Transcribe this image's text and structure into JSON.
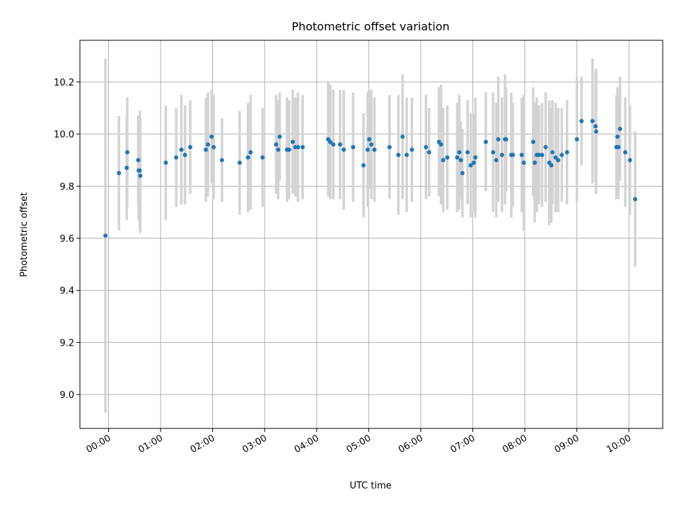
{
  "chart_data": {
    "type": "scatter",
    "title": "Photometric offset variation",
    "xlabel": "UTC time",
    "ylabel": "Photometric offset",
    "xlim": [
      -0.55,
      10.65
    ],
    "ylim": [
      8.87,
      10.36
    ],
    "grid": true,
    "x_ticks": [
      {
        "value": 0,
        "label": "00:00"
      },
      {
        "value": 1,
        "label": "01:00"
      },
      {
        "value": 2,
        "label": "02:00"
      },
      {
        "value": 3,
        "label": "03:00"
      },
      {
        "value": 4,
        "label": "04:00"
      },
      {
        "value": 5,
        "label": "05:00"
      },
      {
        "value": 6,
        "label": "06:00"
      },
      {
        "value": 7,
        "label": "07:00"
      },
      {
        "value": 8,
        "label": "08:00"
      },
      {
        "value": 9,
        "label": "09:00"
      },
      {
        "value": 10,
        "label": "10:00"
      }
    ],
    "y_ticks": [
      {
        "value": 9.0,
        "label": "9.0"
      },
      {
        "value": 9.2,
        "label": "9.2"
      },
      {
        "value": 9.4,
        "label": "9.4"
      },
      {
        "value": 9.6,
        "label": "9.6"
      },
      {
        "value": 9.8,
        "label": "9.8"
      },
      {
        "value": 10.0,
        "label": "10.0"
      },
      {
        "value": 10.2,
        "label": "10.2"
      }
    ],
    "colors": {
      "marker": "#1f77b4",
      "errorbar": "#d3d3d3"
    },
    "series": [
      {
        "name": "offset",
        "x": [
          -0.06,
          0.2,
          0.35,
          0.36,
          0.57,
          0.58,
          0.6,
          0.61,
          1.1,
          1.3,
          1.4,
          1.47,
          1.57,
          1.87,
          1.91,
          1.98,
          2.02,
          2.18,
          2.52,
          2.68,
          2.73,
          2.96,
          3.22,
          3.26,
          3.29,
          3.43,
          3.47,
          3.54,
          3.59,
          3.64,
          3.73,
          4.22,
          4.26,
          4.32,
          4.45,
          4.52,
          4.7,
          4.9,
          4.98,
          5.01,
          5.05,
          5.11,
          5.4,
          5.57,
          5.65,
          5.73,
          5.83,
          6.1,
          6.16,
          6.35,
          6.39,
          6.43,
          6.51,
          6.7,
          6.74,
          6.77,
          6.8,
          6.9,
          6.96,
          7.02,
          7.05,
          7.25,
          7.39,
          7.45,
          7.49,
          7.56,
          7.62,
          7.64,
          7.74,
          7.77,
          7.94,
          7.98,
          8.16,
          8.19,
          8.23,
          8.27,
          8.33,
          8.4,
          8.47,
          8.51,
          8.53,
          8.59,
          8.64,
          8.71,
          8.81,
          9.0,
          9.09,
          9.3,
          9.36,
          9.37,
          9.76,
          9.78,
          9.8,
          9.83,
          9.93,
          10.02,
          10.12
        ],
        "y": [
          9.61,
          9.85,
          9.87,
          9.93,
          9.9,
          9.86,
          9.86,
          9.84,
          9.89,
          9.91,
          9.94,
          9.92,
          9.95,
          9.94,
          9.96,
          9.99,
          9.95,
          9.9,
          9.89,
          9.91,
          9.93,
          9.91,
          9.96,
          9.94,
          9.99,
          9.94,
          9.94,
          9.97,
          9.95,
          9.95,
          9.95,
          9.98,
          9.97,
          9.96,
          9.96,
          9.94,
          9.95,
          9.88,
          9.94,
          9.98,
          9.96,
          9.94,
          9.95,
          9.92,
          9.99,
          9.92,
          9.94,
          9.95,
          9.93,
          9.97,
          9.96,
          9.9,
          9.91,
          9.91,
          9.93,
          9.9,
          9.85,
          9.93,
          9.88,
          9.89,
          9.91,
          9.97,
          9.93,
          9.9,
          9.98,
          9.92,
          9.98,
          9.98,
          9.92,
          9.92,
          9.92,
          9.89,
          9.97,
          9.89,
          9.92,
          9.92,
          9.92,
          9.95,
          9.89,
          9.88,
          9.93,
          9.91,
          9.9,
          9.92,
          9.93,
          9.98,
          10.05,
          10.05,
          10.03,
          10.01,
          9.95,
          9.99,
          9.95,
          10.02,
          9.93,
          9.9,
          9.75
        ],
        "yerr": [
          0.68,
          0.22,
          0.2,
          0.21,
          0.17,
          0.19,
          0.23,
          0.22,
          0.22,
          0.19,
          0.21,
          0.19,
          0.18,
          0.2,
          0.2,
          0.18,
          0.2,
          0.16,
          0.2,
          0.21,
          0.22,
          0.19,
          0.19,
          0.19,
          0.17,
          0.2,
          0.19,
          0.2,
          0.19,
          0.21,
          0.2,
          0.22,
          0.22,
          0.21,
          0.21,
          0.23,
          0.21,
          0.2,
          0.22,
          0.19,
          0.21,
          0.2,
          0.2,
          0.23,
          0.24,
          0.22,
          0.2,
          0.2,
          0.17,
          0.21,
          0.23,
          0.2,
          0.2,
          0.21,
          0.22,
          0.15,
          0.17,
          0.2,
          0.2,
          0.19,
          0.23,
          0.19,
          0.23,
          0.22,
          0.24,
          0.22,
          0.25,
          0.2,
          0.24,
          0.2,
          0.22,
          0.26,
          0.21,
          0.23,
          0.22,
          0.19,
          0.2,
          0.21,
          0.24,
          0.22,
          0.2,
          0.21,
          0.2,
          0.18,
          0.2,
          0.24,
          0.17,
          0.24,
          0.21,
          0.24,
          0.2,
          0.19,
          0.2,
          0.2,
          0.21,
          0.21,
          0.26
        ]
      }
    ]
  }
}
